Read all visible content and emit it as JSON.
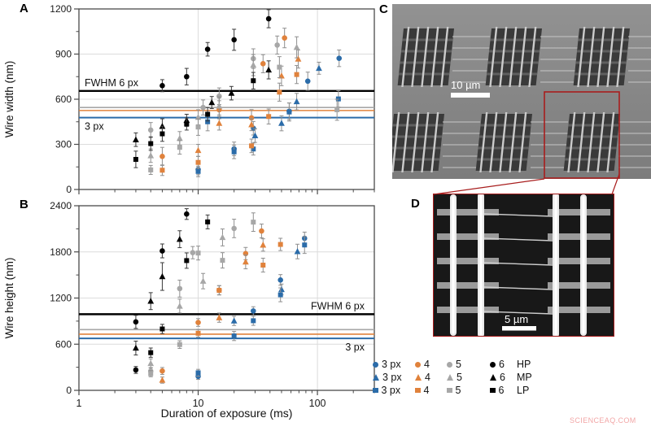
{
  "colors": {
    "blue": "#2B6CA9",
    "orange": "#E0823C",
    "gray": "#A7A7A7",
    "black": "#000000",
    "errorbar": "#8F8F8F",
    "grid": "#DCDCDC",
    "frame": "#4A4A4A",
    "red_accent": "#A81D1D",
    "watermark_color": "#F2A6A6"
  },
  "panels": {
    "a_label": "A",
    "b_label": "B",
    "c_label": "C",
    "d_label": "D"
  },
  "x_axis": {
    "label": "Duration of exposure (ms)",
    "scale": "log",
    "lim": [
      1,
      300
    ],
    "major_ticks": [
      1,
      10,
      100
    ]
  },
  "chart_data": [
    {
      "id": "A",
      "type": "scatter",
      "ylabel": "Wire width (nm)",
      "ylim": [
        0,
        1200
      ],
      "yticks": [
        0,
        300,
        600,
        900,
        1200
      ],
      "xlabel": "Duration of exposure (ms)",
      "xscale": "log",
      "xlim": [
        1,
        300
      ],
      "xticks": [
        1,
        10,
        100
      ],
      "grid": true,
      "ref_lines": [
        {
          "value": 655,
          "color": "black",
          "width": 2.4,
          "label": "FWHM 6 px",
          "label_anchor": "left",
          "label_side": "above"
        },
        {
          "value": 545,
          "color": "gray",
          "width": 1.6
        },
        {
          "value": 525,
          "color": "orange",
          "width": 1.6
        },
        {
          "value": 478,
          "color": "blue",
          "width": 2.0,
          "label": "3 px",
          "label_anchor": "left",
          "label_side": "below"
        }
      ],
      "series": [
        {
          "name": "3 px HP",
          "marker": "circle",
          "color": "blue",
          "points": [
            [
              10,
              133,
              35
            ],
            [
              20,
              270,
              45
            ],
            [
              29,
              407,
              45
            ],
            [
              58,
              520,
              55
            ],
            [
              83,
              720,
              60
            ],
            [
              152,
              872,
              55
            ]
          ]
        },
        {
          "name": "4 HP",
          "marker": "circle",
          "color": "orange",
          "points": [
            [
              5,
              220,
              60
            ],
            [
              15,
              530,
              60
            ],
            [
              28,
              476,
              55
            ],
            [
              35,
              836,
              60
            ],
            [
              53,
              1007,
              65
            ]
          ]
        },
        {
          "name": "5 HP",
          "marker": "circle",
          "color": "gray",
          "points": [
            [
              4,
              395,
              50
            ],
            [
              11,
              545,
              50
            ],
            [
              15,
              620,
              55
            ],
            [
              29,
              870,
              65
            ],
            [
              46,
              960,
              60
            ]
          ]
        },
        {
          "name": "6 HP",
          "marker": "circle",
          "color": "black",
          "points": [
            [
              5,
              690,
              40
            ],
            [
              8,
              750,
              55
            ],
            [
              12,
              932,
              45
            ],
            [
              20,
              995,
              70
            ],
            [
              39,
              1135,
              60
            ]
          ]
        },
        {
          "name": "3 px MP",
          "marker": "triangle",
          "color": "blue",
          "points": [
            [
              30,
              358,
              45
            ],
            [
              50,
              440,
              50
            ],
            [
              67,
              584,
              55
            ],
            [
              103,
              806,
              40
            ]
          ]
        },
        {
          "name": "4 MP",
          "marker": "triangle",
          "color": "orange",
          "points": [
            [
              10,
              260,
              40
            ],
            [
              15,
              440,
              45
            ],
            [
              28,
              431,
              40
            ],
            [
              50,
              755,
              65
            ],
            [
              69,
              867,
              60
            ]
          ]
        },
        {
          "name": "5 MP",
          "marker": "triangle",
          "color": "gray",
          "points": [
            [
              4,
              225,
              45
            ],
            [
              7,
              340,
              45
            ],
            [
              10,
              480,
              50
            ],
            [
              15,
              555,
              60
            ],
            [
              29,
              827,
              70
            ],
            [
              67,
              945,
              70
            ]
          ]
        },
        {
          "name": "6 MP",
          "marker": "triangle",
          "color": "black",
          "points": [
            [
              3,
              331,
              45
            ],
            [
              5,
              420,
              50
            ],
            [
              8,
              460,
              40
            ],
            [
              13,
              578,
              40
            ],
            [
              19,
              640,
              45
            ],
            [
              39,
              795,
              60
            ]
          ]
        },
        {
          "name": "3 px LP",
          "marker": "square",
          "color": "blue",
          "points": [
            [
              10,
              120,
              35
            ],
            [
              12,
              450,
              60
            ],
            [
              20,
              250,
              45
            ],
            [
              29,
              269,
              40
            ],
            [
              58,
              515,
              60
            ],
            [
              150,
              602,
              55
            ]
          ]
        },
        {
          "name": "4 LP",
          "marker": "square",
          "color": "orange",
          "points": [
            [
              5,
              128,
              35
            ],
            [
              10,
              180,
              40
            ],
            [
              28,
              290,
              45
            ],
            [
              39,
              485,
              50
            ],
            [
              48,
              647,
              60
            ],
            [
              67,
              764,
              60
            ]
          ]
        },
        {
          "name": "5 LP",
          "marker": "square",
          "color": "gray",
          "points": [
            [
              4,
              130,
              30
            ],
            [
              7,
              280,
              45
            ],
            [
              10,
              415,
              55
            ],
            [
              48,
              813,
              70
            ],
            [
              146,
              530,
              70
            ]
          ]
        },
        {
          "name": "6 LP",
          "marker": "square",
          "color": "black",
          "points": [
            [
              3,
              200,
              55
            ],
            [
              4,
              305,
              45
            ],
            [
              5,
              370,
              50
            ],
            [
              8,
              435,
              40
            ],
            [
              12,
              500,
              45
            ],
            [
              29,
              723,
              55
            ]
          ]
        }
      ]
    },
    {
      "id": "B",
      "type": "scatter",
      "ylabel": "Wire height (nm)",
      "ylim": [
        0,
        2400
      ],
      "yticks": [
        0,
        600,
        1200,
        1800,
        2400
      ],
      "xlabel": "Duration of exposure (ms)",
      "xscale": "log",
      "xlim": [
        1,
        300
      ],
      "xticks": [
        1,
        10,
        100
      ],
      "grid": true,
      "ref_lines": [
        {
          "value": 990,
          "color": "black",
          "width": 2.4,
          "label": "FWHM 6 px",
          "label_anchor": "right",
          "label_side": "above"
        },
        {
          "value": 790,
          "color": "gray",
          "width": 1.6
        },
        {
          "value": 730,
          "color": "orange",
          "width": 1.6
        },
        {
          "value": 675,
          "color": "blue",
          "width": 2.0,
          "label": "3 px",
          "label_anchor": "right",
          "label_side": "below"
        }
      ],
      "series": [
        {
          "name": "3 px HP",
          "marker": "circle",
          "color": "blue",
          "points": [
            [
              10,
              182,
              40
            ],
            [
              29,
              1032,
              55
            ],
            [
              49,
              1435,
              70
            ],
            [
              78,
              1977,
              80
            ]
          ]
        },
        {
          "name": "4 HP",
          "marker": "circle",
          "color": "orange",
          "points": [
            [
              5,
              252,
              45
            ],
            [
              10,
              882,
              50
            ],
            [
              15,
              1302,
              60
            ],
            [
              25,
              1778,
              80
            ],
            [
              34,
              2072,
              90
            ]
          ]
        },
        {
          "name": "5 HP",
          "marker": "circle",
          "color": "gray",
          "points": [
            [
              4,
              250,
              45
            ],
            [
              7,
              1323,
              110
            ],
            [
              9,
              1790,
              80
            ],
            [
              20,
              2105,
              120
            ]
          ]
        },
        {
          "name": "6 HP",
          "marker": "circle",
          "color": "black",
          "points": [
            [
              3,
              265,
              45
            ],
            [
              3,
              890,
              85
            ],
            [
              5,
              1813,
              90
            ],
            [
              8,
              2292,
              70
            ]
          ]
        },
        {
          "name": "3 px MP",
          "marker": "triangle",
          "color": "blue",
          "points": [
            [
              20,
              903,
              60
            ],
            [
              50,
              1312,
              70
            ],
            [
              68,
              1805,
              95
            ]
          ]
        },
        {
          "name": "4 MP",
          "marker": "triangle",
          "color": "orange",
          "points": [
            [
              5,
              133,
              40
            ],
            [
              15,
              945,
              60
            ],
            [
              25,
              1670,
              90
            ],
            [
              35,
              1890,
              80
            ]
          ]
        },
        {
          "name": "5 MP",
          "marker": "triangle",
          "color": "gray",
          "points": [
            [
              4,
              350,
              60
            ],
            [
              7,
              1095,
              90
            ],
            [
              11,
              1420,
              100
            ],
            [
              16,
              1988,
              110
            ]
          ]
        },
        {
          "name": "6 MP",
          "marker": "triangle",
          "color": "black",
          "points": [
            [
              3,
              550,
              90
            ],
            [
              4,
              1160,
              110
            ],
            [
              5,
              1480,
              180
            ],
            [
              7,
              1965,
              110
            ]
          ]
        },
        {
          "name": "3 px LP",
          "marker": "square",
          "color": "blue",
          "points": [
            [
              10,
              228,
              45
            ],
            [
              20,
              707,
              60
            ],
            [
              29,
              905,
              60
            ],
            [
              49,
              1242,
              90
            ],
            [
              78,
              1890,
              110
            ]
          ]
        },
        {
          "name": "4 LP",
          "marker": "square",
          "color": "orange",
          "points": [
            [
              10,
              742,
              50
            ],
            [
              15,
              1300,
              60
            ],
            [
              35,
              1628,
              90
            ],
            [
              49,
              1897,
              80
            ]
          ]
        },
        {
          "name": "5 LP",
          "marker": "square",
          "color": "gray",
          "points": [
            [
              4,
              217,
              40
            ],
            [
              7,
              595,
              50
            ],
            [
              10,
              1785,
              90
            ],
            [
              16,
              1690,
              100
            ],
            [
              29,
              2187,
              120
            ]
          ]
        },
        {
          "name": "6 LP",
          "marker": "square",
          "color": "black",
          "points": [
            [
              4,
              490,
              60
            ],
            [
              5,
              798,
              60
            ],
            [
              8,
              1687,
              100
            ],
            [
              12,
              2190,
              90
            ]
          ]
        }
      ]
    }
  ],
  "legend": {
    "colors_order": [
      "blue",
      "orange",
      "gray",
      "black"
    ],
    "rows": [
      {
        "marker": "circle",
        "labels": [
          "3 px",
          "4",
          "5",
          "6"
        ],
        "suffix": "HP"
      },
      {
        "marker": "triangle",
        "labels": [
          "3 px",
          "4",
          "5",
          "6"
        ],
        "suffix": "MP"
      },
      {
        "marker": "square",
        "labels": [
          "3 px",
          "4",
          "5",
          "6"
        ],
        "suffix": "LP"
      }
    ]
  },
  "panel_c": {
    "scale_label": "10 µm"
  },
  "panel_d": {
    "scale_label": "5 µm"
  },
  "watermark": "SCIENCEAQ.COM"
}
